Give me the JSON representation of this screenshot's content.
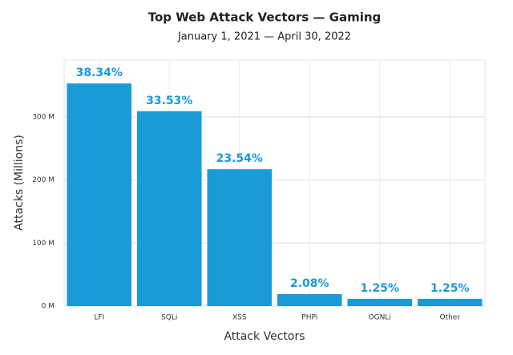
{
  "chart_data": {
    "type": "bar",
    "title": "Top Web Attack Vectors — Gaming",
    "subtitle": "January 1, 2021 — April 30, 2022",
    "x_label": "Attack Vectors",
    "y_label": "Attacks (Millions)",
    "categories": [
      "LFI",
      "SQLi",
      "XSS",
      "PHPi",
      "OGNLi",
      "Other"
    ],
    "values": [
      353,
      309,
      217,
      19,
      11.5,
      11.5
    ],
    "data_labels": [
      "38.34%",
      "33.53%",
      "23.54%",
      "2.08%",
      "1.25%",
      "1.25%"
    ],
    "color": "#1a9ad6",
    "ylim": [
      0,
      390
    ],
    "yticks": [
      {
        "value": 0,
        "label": "0 M"
      },
      {
        "value": 100,
        "label": "100 M"
      },
      {
        "value": 200,
        "label": "200 M"
      },
      {
        "value": 300,
        "label": "300 M"
      }
    ],
    "grid": true
  }
}
